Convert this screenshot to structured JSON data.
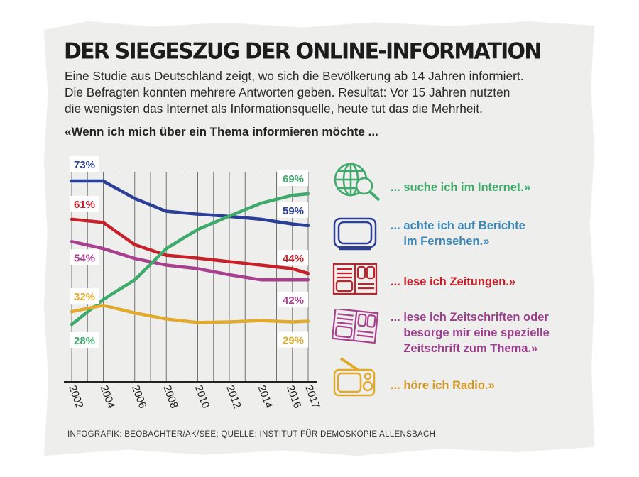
{
  "header": {
    "title": "DER SIEGESZUG DER ONLINE-INFORMATION",
    "intro_lines": [
      "Eine Studie aus Deutschland zeigt, wo sich die Bevölkerung ab 14 Jahren informiert.",
      "Die Befragten konnten mehrere Antworten geben. Resultat: Vor 15 Jahren nutzten",
      "die wenigsten das Internet als Informationsquelle, heute tut das die Mehrheit."
    ],
    "question": "«Wenn ich mich über ein Thema informieren möchte ..."
  },
  "chart_data": {
    "type": "line",
    "title": "",
    "xlabel": "",
    "ylabel": "",
    "x": [
      2002,
      2004,
      2006,
      2008,
      2010,
      2012,
      2014,
      2016,
      2017
    ],
    "x_tick_labels": [
      "2002",
      "2004",
      "2006",
      "2008",
      "2010",
      "2012",
      "2014",
      "2016",
      "2017"
    ],
    "ylim": [
      10,
      80
    ],
    "grid": "vertical lines every year",
    "series": [
      {
        "key": "tv",
        "color": "#2b3f97",
        "values": [
          73,
          73,
          67.5,
          63.5,
          62.6,
          61.9,
          61,
          59.5,
          59
        ],
        "start_label": "73%",
        "end_label": "59%"
      },
      {
        "key": "newspaper",
        "color": "#c8202a",
        "values": [
          61,
          60,
          53,
          49.7,
          48.8,
          47.7,
          46.6,
          45.5,
          44
        ],
        "start_label": "61%",
        "end_label": "44%"
      },
      {
        "key": "magazine",
        "color": "#a8408f",
        "values": [
          54,
          51.8,
          48.7,
          46.6,
          45.5,
          43.6,
          42,
          42,
          42
        ],
        "start_label": "54%",
        "end_label": "42%"
      },
      {
        "key": "internet",
        "color": "#3eaa6c",
        "values": [
          28,
          35.8,
          42,
          51.8,
          57.8,
          62,
          66,
          68.5,
          69
        ],
        "start_label": "28%",
        "end_label": "69%"
      },
      {
        "key": "radio",
        "color": "#e1aa2c",
        "values": [
          32,
          34,
          31.6,
          29.7,
          28.6,
          28.8,
          29.2,
          28.8,
          29
        ],
        "start_label": "32%",
        "end_label": "29%"
      }
    ]
  },
  "legend": [
    {
      "key": "internet",
      "icon": "globe-magnifier-icon",
      "color": "#3eaa6c",
      "text": "... suche ich im Internet.»"
    },
    {
      "key": "tv",
      "icon": "tv-icon",
      "color": "#3a87b8",
      "text": "... achte ich auf Berichte\n    im Fernsehen.»"
    },
    {
      "key": "newspaper",
      "icon": "newspaper-icon",
      "color": "#c8202a",
      "text": "... lese ich Zeitungen.»"
    },
    {
      "key": "magazine",
      "icon": "magazine-icon",
      "color": "#9a3d8c",
      "text": "... lese ich Zeitschriften oder\n    besorge mir eine spezielle\n    Zeitschrift zum Thema.»"
    },
    {
      "key": "radio",
      "icon": "radio-icon",
      "color": "#d49a26",
      "text": "... höre ich Radio.»"
    }
  ],
  "footer": "INFOGRAFIK: BEOBACHTER/AK/SEE; QUELLE: INSTITUT FÜR DEMOSKOPIE ALLENSBACH"
}
